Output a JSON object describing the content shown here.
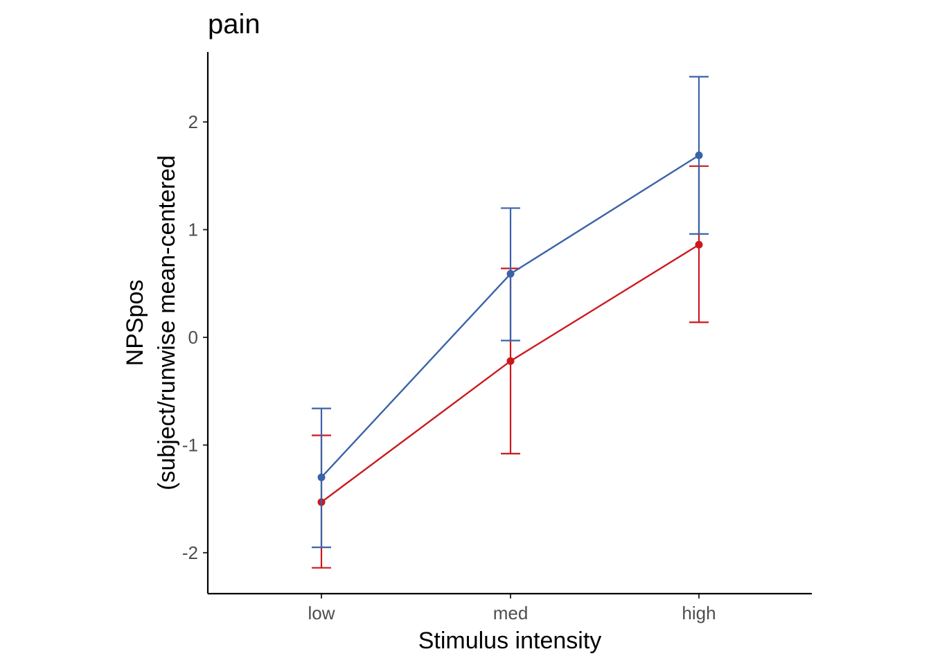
{
  "chart_data": {
    "type": "line",
    "title": "pain",
    "xlabel": "Stimulus intensity",
    "ylabel_lines": [
      "NPSpos",
      "(subject/runwise mean-centered"
    ],
    "categories": [
      "low",
      "med",
      "high"
    ],
    "ylim": [
      -2.38,
      2.65
    ],
    "yticks": [
      -2,
      -1,
      0,
      1,
      2
    ],
    "ytick_labels": [
      "-2",
      "-1",
      "0",
      "1",
      "2"
    ],
    "grid": false,
    "legend": "none",
    "series": [
      {
        "name": "series-red",
        "color": "#cb181d",
        "values": [
          -1.53,
          -0.22,
          0.86
        ],
        "lower": [
          -2.14,
          -1.08,
          0.14
        ],
        "upper": [
          -0.91,
          0.64,
          1.59
        ]
      },
      {
        "name": "series-blue",
        "color": "#3a62a8",
        "values": [
          -1.3,
          0.59,
          1.69
        ],
        "lower": [
          -1.95,
          -0.03,
          0.96
        ],
        "upper": [
          -0.66,
          1.2,
          2.42
        ]
      }
    ]
  }
}
